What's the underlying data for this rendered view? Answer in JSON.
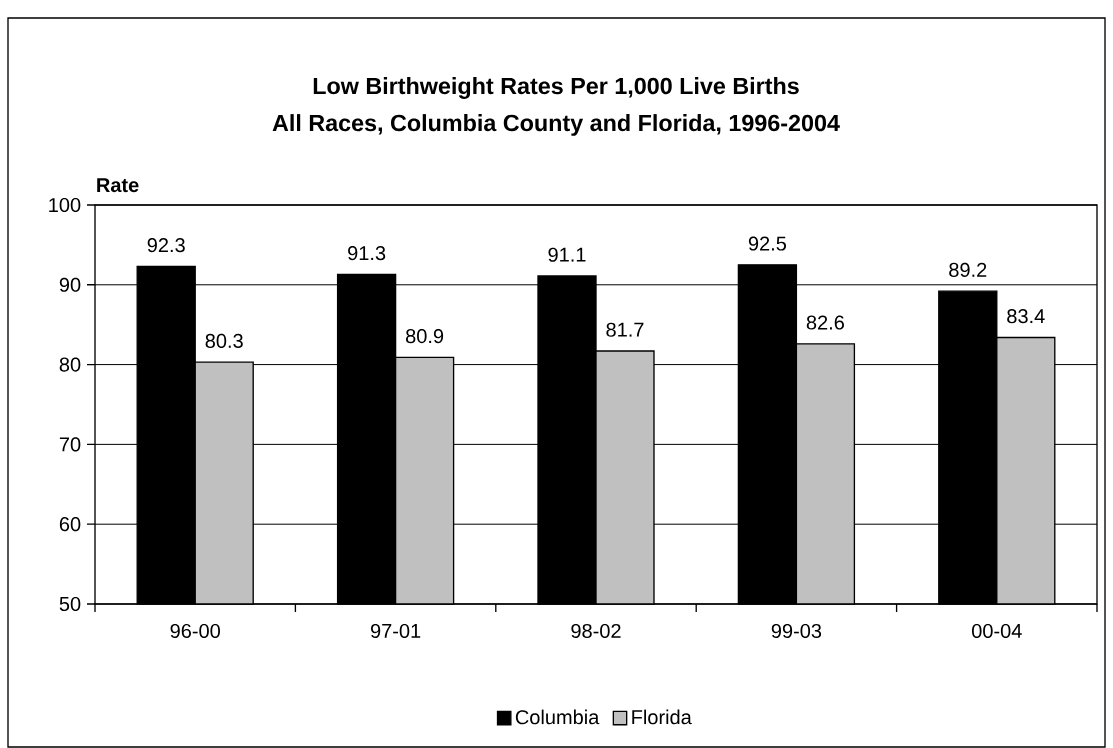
{
  "chart_data": {
    "type": "bar",
    "title": "Low Birthweight Rates Per 1,000 Live Births",
    "subtitle": "All Races, Columbia County and Florida, 1996-2004",
    "ylabel": "Rate",
    "categories": [
      "96-00",
      "97-01",
      "98-02",
      "99-03",
      "00-04"
    ],
    "series": [
      {
        "name": "Columbia",
        "color": "#000000",
        "values": [
          92.3,
          91.3,
          91.1,
          92.5,
          89.2
        ]
      },
      {
        "name": "Florida",
        "color": "#c0c0c0",
        "values": [
          80.3,
          80.9,
          81.7,
          82.6,
          83.4
        ]
      }
    ],
    "ylim": [
      50,
      100
    ],
    "yticks": [
      50,
      60,
      70,
      80,
      90,
      100
    ],
    "grid": "y",
    "legend": "bottom",
    "data_labels": true
  }
}
